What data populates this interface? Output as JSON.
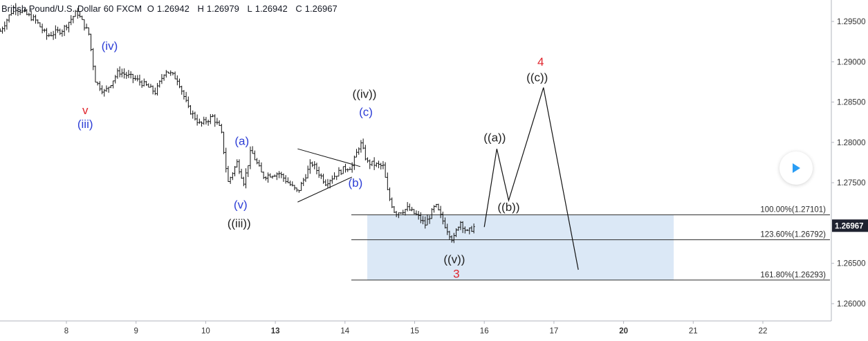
{
  "header": {
    "symbol": "British Pound/U.S. Dollar",
    "timeframe": "60",
    "exchange": "FXCM",
    "open_label": "O",
    "open": "1.26942",
    "high_label": "H",
    "high": "1.26979",
    "low_label": "L",
    "low": "1.26942",
    "close_label": "C",
    "close": "1.26967"
  },
  "colors": {
    "blue_label": "#2c3dd6",
    "red_label": "#e0232b",
    "black_label": "#222222",
    "fib_zone": "#dbe8f6",
    "price_badge": "#1f2230",
    "play_icon": "#2a9df4"
  },
  "chart_data": {
    "type": "ohlc",
    "ylim": [
      1.2565,
      1.2975
    ],
    "x_ticks": [
      {
        "label": "8",
        "x": 7.0,
        "bold": false
      },
      {
        "label": "9",
        "x": 8.0,
        "bold": false
      },
      {
        "label": "10",
        "x": 9.0,
        "bold": false
      },
      {
        "label": "13",
        "x": 10.0,
        "bold": true
      },
      {
        "label": "14",
        "x": 11.0,
        "bold": false
      },
      {
        "label": "15",
        "x": 12.0,
        "bold": false
      },
      {
        "label": "16",
        "x": 13.0,
        "bold": false
      },
      {
        "label": "17",
        "x": 14.0,
        "bold": false
      },
      {
        "label": "20",
        "x": 15.0,
        "bold": true
      },
      {
        "label": "21",
        "x": 16.0,
        "bold": false
      },
      {
        "label": "22",
        "x": 17.0,
        "bold": false
      }
    ],
    "y_ticks": [
      "1.29500",
      "1.29000",
      "1.28500",
      "1.28000",
      "1.27500",
      "1.26500",
      "1.26000"
    ],
    "y_tick_values": [
      1.295,
      1.29,
      1.285,
      1.28,
      1.275,
      1.265,
      1.26
    ],
    "last_price": "1.26967",
    "last_price_value": 1.26967,
    "price_path": [
      [
        6.05,
        1.2938
      ],
      [
        6.25,
        1.2968
      ],
      [
        6.55,
        1.2952
      ],
      [
        6.72,
        1.2932
      ],
      [
        6.95,
        1.294
      ],
      [
        7.15,
        1.2962
      ],
      [
        7.32,
        1.2935
      ],
      [
        7.42,
        1.2875
      ],
      [
        7.55,
        1.2862
      ],
      [
        7.75,
        1.2888
      ],
      [
        8.0,
        1.2878
      ],
      [
        8.15,
        1.287
      ],
      [
        8.28,
        1.2862
      ],
      [
        8.42,
        1.289
      ],
      [
        8.6,
        1.2878
      ],
      [
        8.75,
        1.2842
      ],
      [
        8.92,
        1.2822
      ],
      [
        9.1,
        1.2832
      ],
      [
        9.22,
        1.2815
      ],
      [
        9.32,
        1.275
      ],
      [
        9.45,
        1.2775
      ],
      [
        9.55,
        1.275
      ],
      [
        9.65,
        1.279
      ],
      [
        9.82,
        1.2758
      ],
      [
        10.05,
        1.2762
      ],
      [
        10.32,
        1.2738
      ],
      [
        10.52,
        1.2775
      ],
      [
        10.72,
        1.275
      ],
      [
        10.9,
        1.2762
      ],
      [
        11.0,
        1.2768
      ],
      [
        11.1,
        1.277
      ],
      [
        11.22,
        1.28
      ],
      [
        11.32,
        1.2775
      ],
      [
        11.55,
        1.277
      ],
      [
        11.62,
        1.2735
      ],
      [
        11.72,
        1.2712
      ],
      [
        11.9,
        1.2718
      ],
      [
        12.05,
        1.2708
      ],
      [
        12.15,
        1.2698
      ],
      [
        12.3,
        1.2722
      ],
      [
        12.42,
        1.27
      ],
      [
        12.55,
        1.2678
      ],
      [
        12.65,
        1.2703
      ],
      [
        12.75,
        1.2688
      ],
      [
        12.88,
        1.2697
      ]
    ],
    "wave_labels": [
      {
        "text": "(iv)",
        "x": 7.62,
        "y": 1.2915,
        "color": "blue"
      },
      {
        "text": "v",
        "x": 7.27,
        "y": 1.2835,
        "color": "red"
      },
      {
        "text": "(iii)",
        "x": 7.27,
        "y": 1.2818,
        "color": "blue"
      },
      {
        "text": "(a)",
        "x": 9.52,
        "y": 1.2797,
        "color": "blue"
      },
      {
        "text": "(v)",
        "x": 9.5,
        "y": 1.2718,
        "color": "blue"
      },
      {
        "text": "((iii))",
        "x": 9.48,
        "y": 1.2695,
        "color": "black"
      },
      {
        "text": "((iv))",
        "x": 11.28,
        "y": 1.2855,
        "color": "black"
      },
      {
        "text": "(c)",
        "x": 11.3,
        "y": 1.2833,
        "color": "blue"
      },
      {
        "text": "(b)",
        "x": 11.15,
        "y": 1.2745,
        "color": "blue"
      },
      {
        "text": "((v))",
        "x": 12.57,
        "y": 1.265,
        "color": "black"
      },
      {
        "text": "3",
        "x": 12.6,
        "y": 1.2632,
        "color": "red"
      },
      {
        "text": "((a))",
        "x": 13.15,
        "y": 1.2801,
        "color": "black"
      },
      {
        "text": "((b))",
        "x": 13.35,
        "y": 1.2715,
        "color": "black"
      },
      {
        "text": "4",
        "x": 13.81,
        "y": 1.2895,
        "color": "red"
      },
      {
        "text": "((c))",
        "x": 13.76,
        "y": 1.2876,
        "color": "black"
      }
    ],
    "projection_path": [
      [
        13.0,
        1.2695
      ],
      [
        13.18,
        1.2792
      ],
      [
        13.35,
        1.2728
      ],
      [
        13.85,
        1.2868
      ],
      [
        14.35,
        1.2642
      ]
    ],
    "triangle": {
      "upper": [
        [
          10.32,
          1.2792
        ],
        [
          11.22,
          1.277
        ]
      ],
      "lower": [
        [
          10.32,
          1.2726
        ],
        [
          11.1,
          1.2757
        ]
      ]
    },
    "fib_zone": {
      "x_start": 11.32,
      "x_end": 15.72,
      "y_top": 1.27101,
      "y_bottom": 1.26293
    },
    "fib_levels": [
      {
        "label": "100.00%(1.27101)",
        "value": 1.27101
      },
      {
        "label": "123.60%(1.26792)",
        "value": 1.26792
      },
      {
        "label": "161.80%(1.26293)",
        "value": 1.26293
      }
    ]
  }
}
